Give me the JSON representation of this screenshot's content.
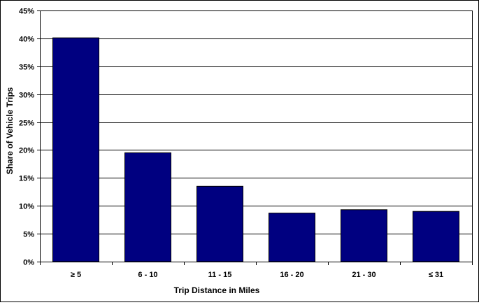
{
  "chart_data": {
    "type": "bar",
    "title": "",
    "xlabel": "Trip Distance in Miles",
    "ylabel": "Share of Vehicle Trips",
    "categories": [
      "≥ 5",
      "6 - 10",
      "11 - 15",
      "16 - 20",
      "21 - 30",
      "≤ 31"
    ],
    "values": [
      40.1,
      19.5,
      13.5,
      8.7,
      9.3,
      9.0
    ],
    "ylim": [
      0,
      45
    ],
    "ytick_step": 5,
    "ytick_labels": [
      "0%",
      "5%",
      "10%",
      "15%",
      "20%",
      "25%",
      "30%",
      "35%",
      "40%",
      "45%"
    ],
    "grid": true,
    "legend": "none",
    "colors": {
      "bar": "#000080",
      "bar_edge": "#000000",
      "grid": "#000000"
    }
  }
}
